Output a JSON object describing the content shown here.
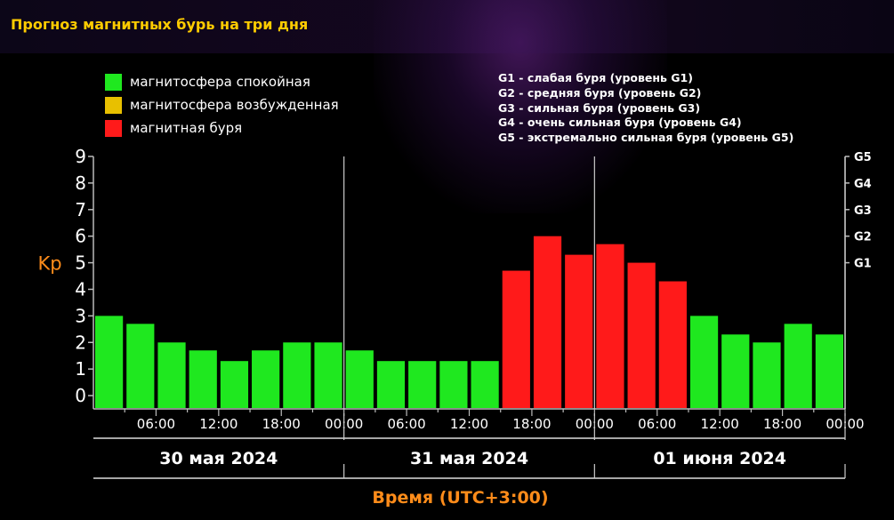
{
  "title": "Прогноз магнитных бурь на три дня",
  "legend": [
    {
      "label": "магнитосфера спокойная",
      "color": "#1fe81f"
    },
    {
      "label": "магнитосфера возбужденная",
      "color": "#e8c000"
    },
    {
      "label": "магнитная буря",
      "color": "#ff1a1a"
    }
  ],
  "g_scale": [
    "G1 - слабая буря (уровень G1)",
    "G2 - средняя буря (уровень G2)",
    "G3 - сильная буря (уровень G3)",
    "G4 - очень сильная буря (уровень G4)",
    "G5 - экстремально сильная буря (уровень G5)"
  ],
  "chart_data": {
    "type": "bar",
    "ylabel": "Kp",
    "xlabel": "Время (UTC+3:00)",
    "ylim": [
      0,
      9
    ],
    "y_ticks": [
      "0",
      "1",
      "2",
      "3",
      "4",
      "5",
      "6",
      "7",
      "8",
      "9"
    ],
    "y_right_ticks": [
      {
        "value": 5,
        "label": "G1"
      },
      {
        "value": 6,
        "label": "G2"
      },
      {
        "value": 7,
        "label": "G3"
      },
      {
        "value": 8,
        "label": "G4"
      },
      {
        "value": 9,
        "label": "G5"
      }
    ],
    "x_tick_labels": [
      "06:00",
      "12:00",
      "18:00",
      "00:00",
      "06:00",
      "12:00",
      "18:00",
      "00:00",
      "06:00",
      "12:00",
      "18:00",
      "00:00"
    ],
    "days": [
      "30 мая 2024",
      "31 мая 2024",
      "01 июня 2024"
    ],
    "values": [
      3.0,
      2.7,
      2.0,
      1.7,
      1.3,
      1.7,
      2.0,
      2.0,
      1.7,
      1.3,
      1.3,
      1.3,
      1.3,
      4.7,
      6.0,
      5.3,
      5.7,
      5.0,
      4.3,
      3.0,
      2.3,
      2.0,
      2.7,
      2.3
    ],
    "colors": [
      "#1fe81f",
      "#1fe81f",
      "#1fe81f",
      "#1fe81f",
      "#1fe81f",
      "#1fe81f",
      "#1fe81f",
      "#1fe81f",
      "#1fe81f",
      "#1fe81f",
      "#1fe81f",
      "#1fe81f",
      "#1fe81f",
      "#ff1a1a",
      "#ff1a1a",
      "#ff1a1a",
      "#ff1a1a",
      "#ff1a1a",
      "#ff1a1a",
      "#1fe81f",
      "#1fe81f",
      "#1fe81f",
      "#1fe81f",
      "#1fe81f"
    ]
  }
}
